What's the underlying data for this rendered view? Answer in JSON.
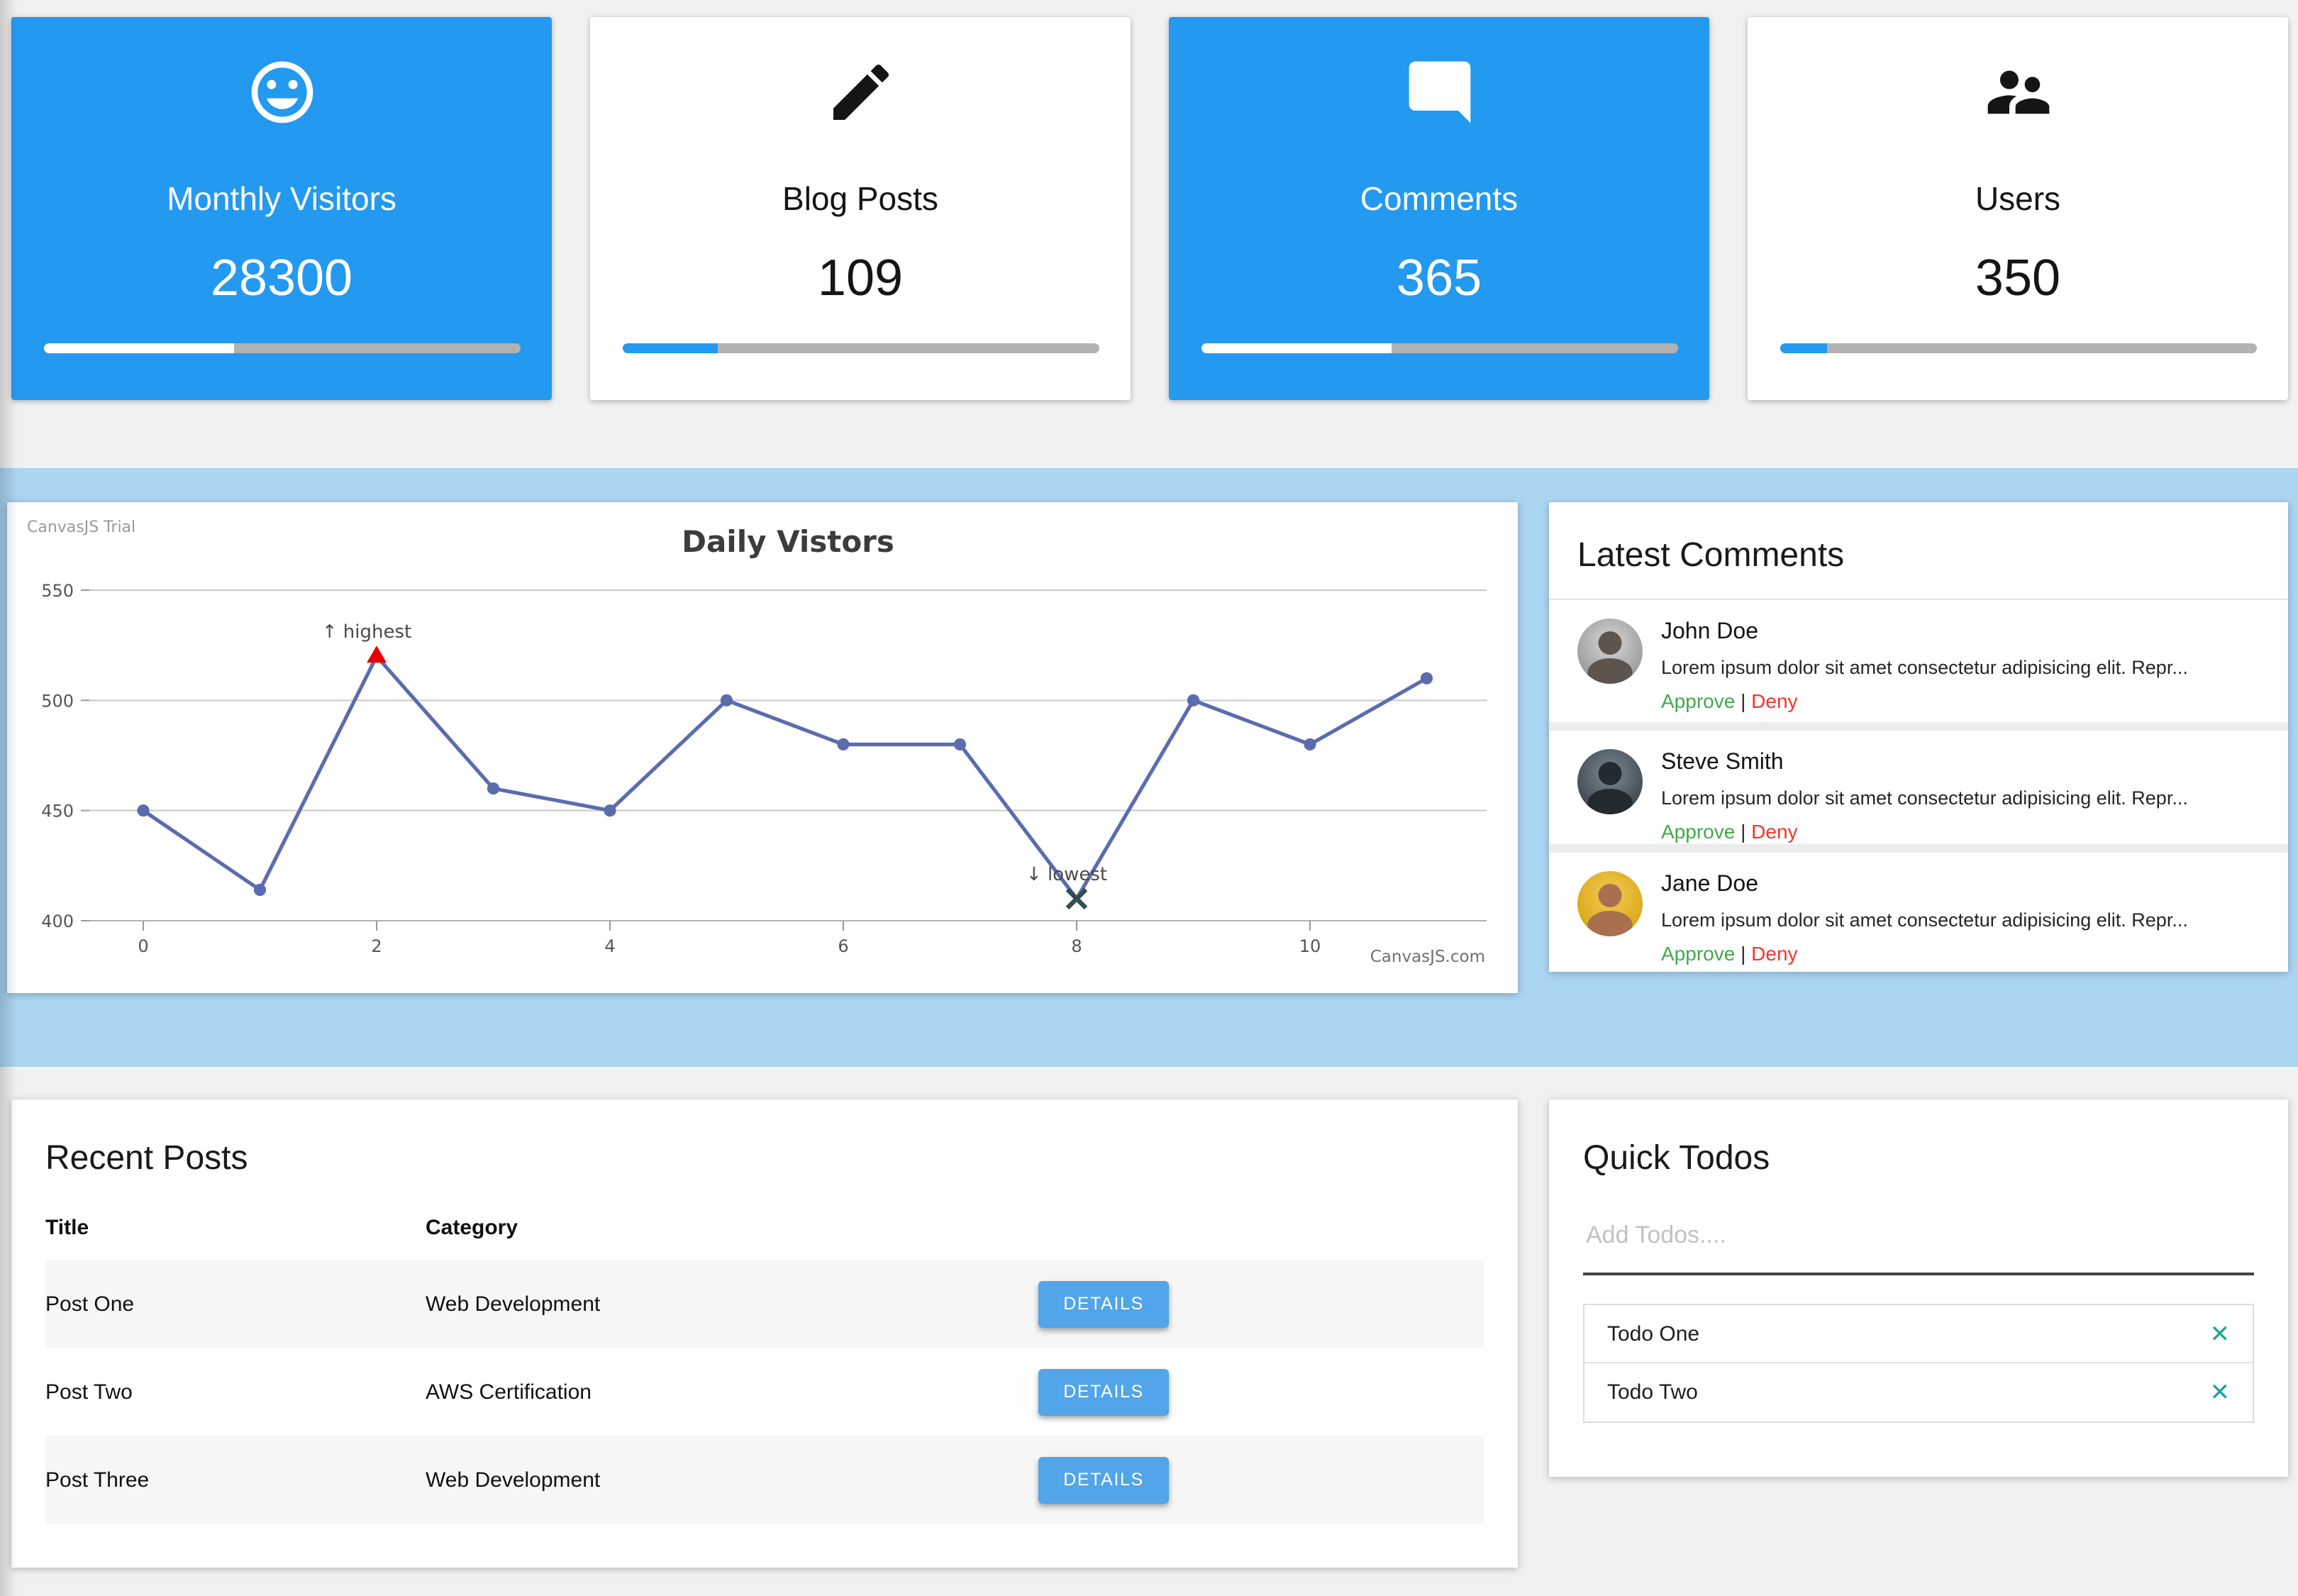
{
  "colors": {
    "card_blue": "#2399f0",
    "band_blue": "#aad5f3",
    "details_blue": "#51a5e8",
    "approve_green": "#43a84c",
    "deny_red": "#f4352b",
    "todo_x_teal": "#18a692"
  },
  "stats": [
    {
      "label": "Monthly Visitors",
      "value": "28300",
      "icon": "smiley-icon",
      "variant": "blue",
      "progress": 40
    },
    {
      "label": "Blog Posts",
      "value": "109",
      "icon": "pencil-icon",
      "variant": "white",
      "progress": 20
    },
    {
      "label": "Comments",
      "value": "365",
      "icon": "comment-icon",
      "variant": "blue",
      "progress": 40
    },
    {
      "label": "Users",
      "value": "350",
      "icon": "users-icon",
      "variant": "white",
      "progress": 10
    }
  ],
  "chart_data": {
    "type": "line",
    "title": "Daily Vistors",
    "watermark_top": "CanvasJS Trial",
    "credit": "CanvasJS.com",
    "x": [
      0,
      1,
      2,
      3,
      4,
      5,
      6,
      7,
      8,
      9,
      10,
      11
    ],
    "y": [
      450,
      414,
      520,
      460,
      450,
      500,
      480,
      480,
      410,
      500,
      480,
      510
    ],
    "ylim": [
      400,
      550
    ],
    "yticks": [
      400,
      450,
      500,
      550
    ],
    "xticks": [
      0,
      2,
      4,
      6,
      8,
      10
    ],
    "grid": true,
    "legend": "none",
    "line_color": "#5b6cae",
    "annotations": [
      {
        "x": 2,
        "y": 520,
        "label": "↑ highest",
        "marker": "triangle",
        "marker_color": "#e60000"
      },
      {
        "x": 8,
        "y": 410,
        "label": "↓ lowest",
        "marker": "cross",
        "marker_color": "#2f4f4f"
      }
    ]
  },
  "comments": {
    "title": "Latest Comments",
    "approve_label": "Approve",
    "separator": "|",
    "deny_label": "Deny",
    "items": [
      {
        "name": "John Doe",
        "avatar": "john",
        "text": "Lorem ipsum dolor sit amet consectetur adipisicing elit. Repr..."
      },
      {
        "name": "Steve Smith",
        "avatar": "steve",
        "text": "Lorem ipsum dolor sit amet consectetur adipisicing elit. Repr..."
      },
      {
        "name": "Jane Doe",
        "avatar": "jane",
        "text": "Lorem ipsum dolor sit amet consectetur adipisicing elit. Repr..."
      }
    ]
  },
  "posts": {
    "title": "Recent Posts",
    "columns": [
      "Title",
      "Category"
    ],
    "details_label": "DETAILS",
    "rows": [
      {
        "title": "Post One",
        "category": "Web Development"
      },
      {
        "title": "Post Two",
        "category": "AWS Certification"
      },
      {
        "title": "Post Three",
        "category": "Web Development"
      }
    ]
  },
  "todos": {
    "title": "Quick Todos",
    "placeholder": "Add Todos....",
    "remove_glyph": "✕",
    "items": [
      "Todo One",
      "Todo Two"
    ]
  }
}
